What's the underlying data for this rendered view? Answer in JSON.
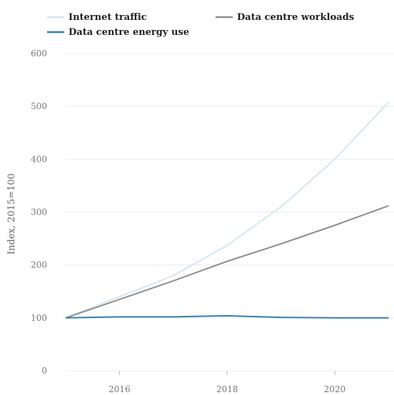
{
  "chart_data": {
    "type": "line",
    "xlabel": "",
    "ylabel": "Index, 2015=100",
    "xlim": [
      2015,
      2021.1
    ],
    "ylim": [
      0,
      600
    ],
    "x_ticks": [
      2016,
      2018,
      2020
    ],
    "y_ticks": [
      0,
      100,
      200,
      300,
      400,
      500,
      600
    ],
    "grid": "horizontal",
    "legend_position": "top-left",
    "series": [
      {
        "name": "Internet traffic",
        "color": "#cfe8f2",
        "x": [
          2015,
          2016,
          2017,
          2018,
          2019,
          2020,
          2021
        ],
        "values": [
          100,
          140,
          180,
          237,
          310,
          400,
          508
        ]
      },
      {
        "name": "Data centre workloads",
        "color": "#8e8e8e",
        "x": [
          2015,
          2016,
          2017,
          2018,
          2019,
          2020,
          2021
        ],
        "values": [
          100,
          135,
          170,
          207,
          240,
          275,
          312
        ]
      },
      {
        "name": "Data centre energy use",
        "color": "#2f7fbf",
        "x": [
          2015,
          2016,
          2017,
          2018,
          2019,
          2020,
          2021
        ],
        "values": [
          100,
          102,
          102,
          104,
          101,
          100,
          100
        ]
      }
    ]
  }
}
